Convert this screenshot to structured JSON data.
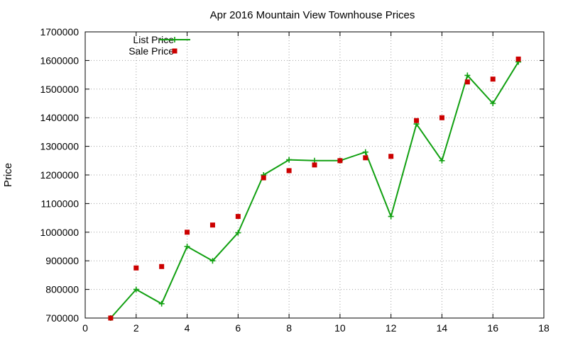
{
  "chart_data": {
    "type": "line",
    "title": "Apr 2016 Mountain View Townhouse Prices",
    "xlabel": "",
    "ylabel": "Price",
    "xlim": [
      0,
      18
    ],
    "ylim": [
      700000,
      1700000
    ],
    "x_ticks": [
      0,
      2,
      4,
      6,
      8,
      10,
      12,
      14,
      16,
      18
    ],
    "y_ticks": [
      700000,
      800000,
      900000,
      1000000,
      1100000,
      1200000,
      1300000,
      1400000,
      1500000,
      1600000,
      1700000
    ],
    "grid": true,
    "legend_position": "top-left",
    "series": [
      {
        "name": "List Price",
        "style": "line+cross",
        "color": "#11a011",
        "x": [
          1,
          2,
          3,
          4,
          5,
          6,
          7,
          8,
          9,
          10,
          11,
          12,
          13,
          14,
          15,
          16,
          17
        ],
        "values": [
          700000,
          800000,
          750000,
          950000,
          900000,
          998000,
          1200000,
          1253000,
          1250000,
          1250000,
          1280000,
          1055000,
          1378000,
          1250000,
          1548000,
          1450000,
          1595000
        ]
      },
      {
        "name": "Sale Price",
        "style": "square-marker",
        "color": "#cc0000",
        "x": [
          1,
          2,
          3,
          4,
          5,
          6,
          7,
          8,
          9,
          10,
          11,
          12,
          13,
          14,
          15,
          16,
          17
        ],
        "values": [
          700000,
          875000,
          880000,
          1000000,
          1025000,
          1055000,
          1190000,
          1215000,
          1235000,
          1250000,
          1260000,
          1265000,
          1390000,
          1400000,
          1525000,
          1535000,
          1605000
        ]
      }
    ]
  }
}
